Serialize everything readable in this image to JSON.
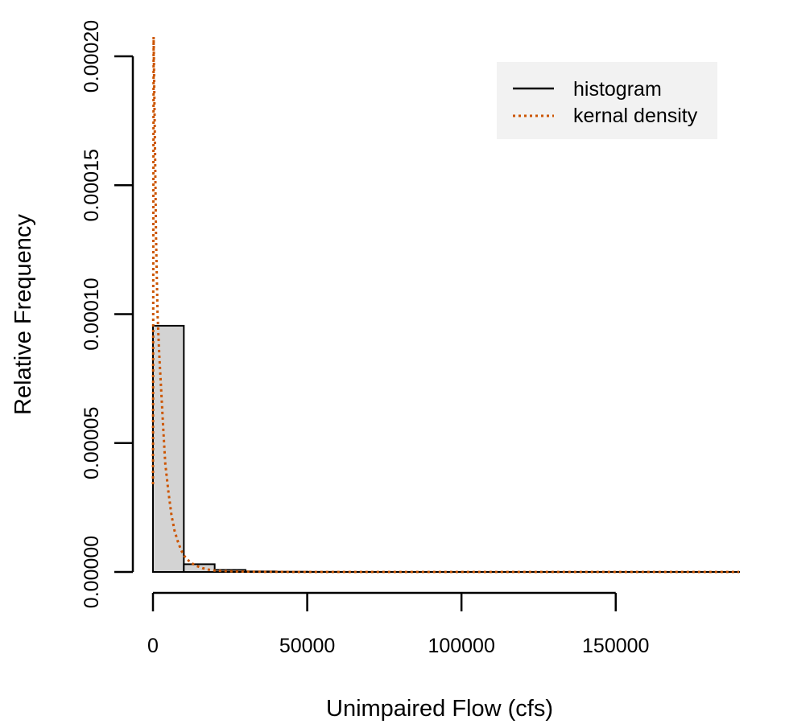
{
  "chart_data": {
    "type": "histogram",
    "title": "",
    "xlabel": "Unimpaired Flow (cfs)",
    "ylabel": "Relative Frequency",
    "xlim": [
      0,
      190000
    ],
    "ylim": [
      0,
      0.0002
    ],
    "x_ticks": [
      {
        "value": 0,
        "label": "0"
      },
      {
        "value": 50000,
        "label": "50000"
      },
      {
        "value": 100000,
        "label": "100000"
      },
      {
        "value": 150000,
        "label": "150000"
      }
    ],
    "y_ticks": [
      {
        "value": 0,
        "label": "0.00000"
      },
      {
        "value": 5e-05,
        "label": "0.00005"
      },
      {
        "value": 0.0001,
        "label": "0.00010"
      },
      {
        "value": 0.00015,
        "label": "0.00015"
      },
      {
        "value": 0.0002,
        "label": "0.00020"
      }
    ],
    "bars": [
      {
        "x0": 0,
        "x1": 10000,
        "value": 9.55e-05
      },
      {
        "x0": 10000,
        "x1": 20000,
        "value": 3e-06
      },
      {
        "x0": 20000,
        "x1": 30000,
        "value": 8e-07
      },
      {
        "x0": 30000,
        "x1": 40000,
        "value": 2e-07
      },
      {
        "x0": 40000,
        "x1": 50000,
        "value": 1e-07
      },
      {
        "x0": 50000,
        "x1": 60000,
        "value": 5e-08
      },
      {
        "x0": 60000,
        "x1": 70000,
        "value": 3e-08
      },
      {
        "x0": 70000,
        "x1": 80000,
        "value": 2e-08
      },
      {
        "x0": 80000,
        "x1": 90000,
        "value": 1e-08
      },
      {
        "x0": 90000,
        "x1": 100000,
        "value": 1e-08
      },
      {
        "x0": 100000,
        "x1": 110000,
        "value": 1e-08
      },
      {
        "x0": 110000,
        "x1": 120000,
        "value": 1e-08
      },
      {
        "x0": 120000,
        "x1": 130000,
        "value": 1e-08
      },
      {
        "x0": 130000,
        "x1": 140000,
        "value": 1e-08
      },
      {
        "x0": 140000,
        "x1": 150000,
        "value": 1e-08
      },
      {
        "x0": 150000,
        "x1": 160000,
        "value": 1e-08
      },
      {
        "x0": 160000,
        "x1": 170000,
        "value": 1e-08
      },
      {
        "x0": 170000,
        "x1": 180000,
        "value": 1e-08
      },
      {
        "x0": 180000,
        "x1": 190000,
        "value": 1e-08
      }
    ],
    "density": {
      "name": "kernal density",
      "x": [
        0,
        200,
        400,
        700,
        1000,
        1500,
        2000,
        2500,
        3000,
        3500,
        4000,
        5000,
        6000,
        7000,
        8000,
        9000,
        10000,
        12000,
        14000,
        16000,
        18000,
        20000,
        23000,
        26000,
        30000,
        35000,
        40000,
        50000,
        70000,
        100000,
        150000,
        190000
      ],
      "y": [
        3.4e-05,
        0.0002075,
        0.00019,
        0.00016,
        0.00013,
        0.0001,
        8.5e-05,
        7.4e-05,
        6.3e-05,
        5.2e-05,
        4.2e-05,
        3.1e-05,
        2.2e-05,
        1.6e-05,
        1.2e-05,
        8.8e-06,
        6.4e-06,
        3.8e-06,
        2.4e-06,
        1.5e-06,
        9e-07,
        5.5e-07,
        3.5e-07,
        2.2e-07,
        1.2e-07,
        6e-08,
        3e-08,
        1e-08,
        0.0,
        0.0,
        0.0,
        0.0
      ]
    },
    "legend": {
      "placement": "top-right",
      "entries": [
        {
          "label": "histogram",
          "style": "solid",
          "color": "#000000"
        },
        {
          "label": "kernal density",
          "style": "dotted",
          "color": "#cc5500"
        }
      ]
    },
    "colors": {
      "bar_fill": "#d3d3d3",
      "bar_stroke": "#000000",
      "density": "#cc5500",
      "legend_background": "#f2f2f2"
    },
    "grid": false
  }
}
